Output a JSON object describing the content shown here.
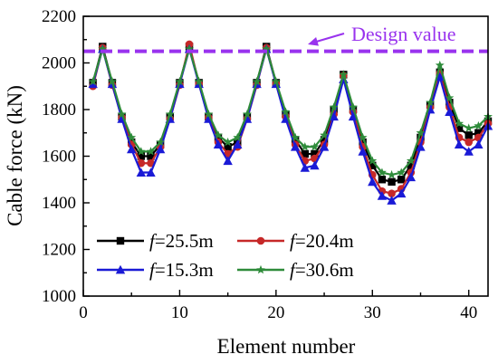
{
  "colors": {
    "design": "#9933ee",
    "s1": "#000000",
    "s2": "#c62828",
    "s3": "#1a1ad6",
    "s4": "#2e8b3a"
  },
  "chart_data": {
    "type": "line",
    "xlabel": "Element number",
    "ylabel": "Cable force (kN)",
    "xlim": [
      0,
      42
    ],
    "ylim": [
      1000,
      2200
    ],
    "xticks": [
      0,
      10,
      20,
      30,
      40
    ],
    "yticks": [
      1000,
      1200,
      1400,
      1600,
      1800,
      2000,
      2200
    ],
    "grid": false,
    "legend_position": "bottom-left",
    "design_value": 2050,
    "annotation": "Design value",
    "x": [
      1,
      2,
      3,
      4,
      5,
      6,
      7,
      8,
      9,
      10,
      11,
      12,
      13,
      14,
      15,
      16,
      17,
      18,
      19,
      20,
      21,
      22,
      23,
      24,
      25,
      26,
      27,
      28,
      29,
      30,
      31,
      32,
      33,
      34,
      35,
      36,
      37,
      38,
      39,
      40,
      41,
      42
    ],
    "series": [
      {
        "name": "f=25.5m",
        "label_prefix": "f",
        "label_suffix": "=25.5m",
        "marker": "square",
        "color_key": "s1",
        "values": [
          1915,
          2070,
          1915,
          1770,
          1660,
          1600,
          1600,
          1650,
          1770,
          1915,
          2070,
          1915,
          1770,
          1680,
          1640,
          1660,
          1770,
          1915,
          2070,
          1915,
          1780,
          1670,
          1610,
          1610,
          1670,
          1800,
          1950,
          1800,
          1660,
          1560,
          1500,
          1490,
          1500,
          1560,
          1680,
          1820,
          1960,
          1830,
          1720,
          1690,
          1700,
          1750
        ]
      },
      {
        "name": "f=20.4m",
        "label_prefix": "f",
        "label_suffix": "=20.4m",
        "marker": "circle",
        "color_key": "s2",
        "values": [
          1900,
          2065,
          1905,
          1765,
          1650,
          1570,
          1570,
          1640,
          1760,
          1905,
          2080,
          1910,
          1765,
          1660,
          1610,
          1640,
          1760,
          1905,
          2065,
          1910,
          1770,
          1650,
          1580,
          1590,
          1650,
          1780,
          1945,
          1790,
          1640,
          1520,
          1450,
          1440,
          1460,
          1530,
          1660,
          1810,
          1955,
          1810,
          1680,
          1660,
          1680,
          1740
        ]
      },
      {
        "name": "f=15.3m",
        "label_prefix": "f",
        "label_suffix": "=15.3m",
        "marker": "triangle",
        "color_key": "s3",
        "values": [
          1910,
          2060,
          1910,
          1760,
          1630,
          1530,
          1530,
          1630,
          1760,
          1910,
          2060,
          1910,
          1760,
          1650,
          1580,
          1650,
          1760,
          1910,
          2060,
          1910,
          1760,
          1640,
          1550,
          1560,
          1640,
          1770,
          1930,
          1770,
          1620,
          1490,
          1430,
          1410,
          1440,
          1510,
          1640,
          1800,
          1940,
          1790,
          1650,
          1620,
          1650,
          1730
        ]
      },
      {
        "name": "f=30.6m",
        "label_prefix": "f",
        "label_suffix": "=30.6m",
        "marker": "star",
        "color_key": "s4",
        "values": [
          1920,
          2060,
          1920,
          1780,
          1680,
          1620,
          1620,
          1660,
          1780,
          1920,
          2060,
          1920,
          1780,
          1690,
          1660,
          1680,
          1780,
          1920,
          2060,
          1920,
          1790,
          1680,
          1640,
          1640,
          1690,
          1810,
          1950,
          1810,
          1680,
          1580,
          1530,
          1520,
          1530,
          1580,
          1700,
          1830,
          1990,
          1850,
          1740,
          1720,
          1730,
          1770
        ]
      }
    ]
  }
}
